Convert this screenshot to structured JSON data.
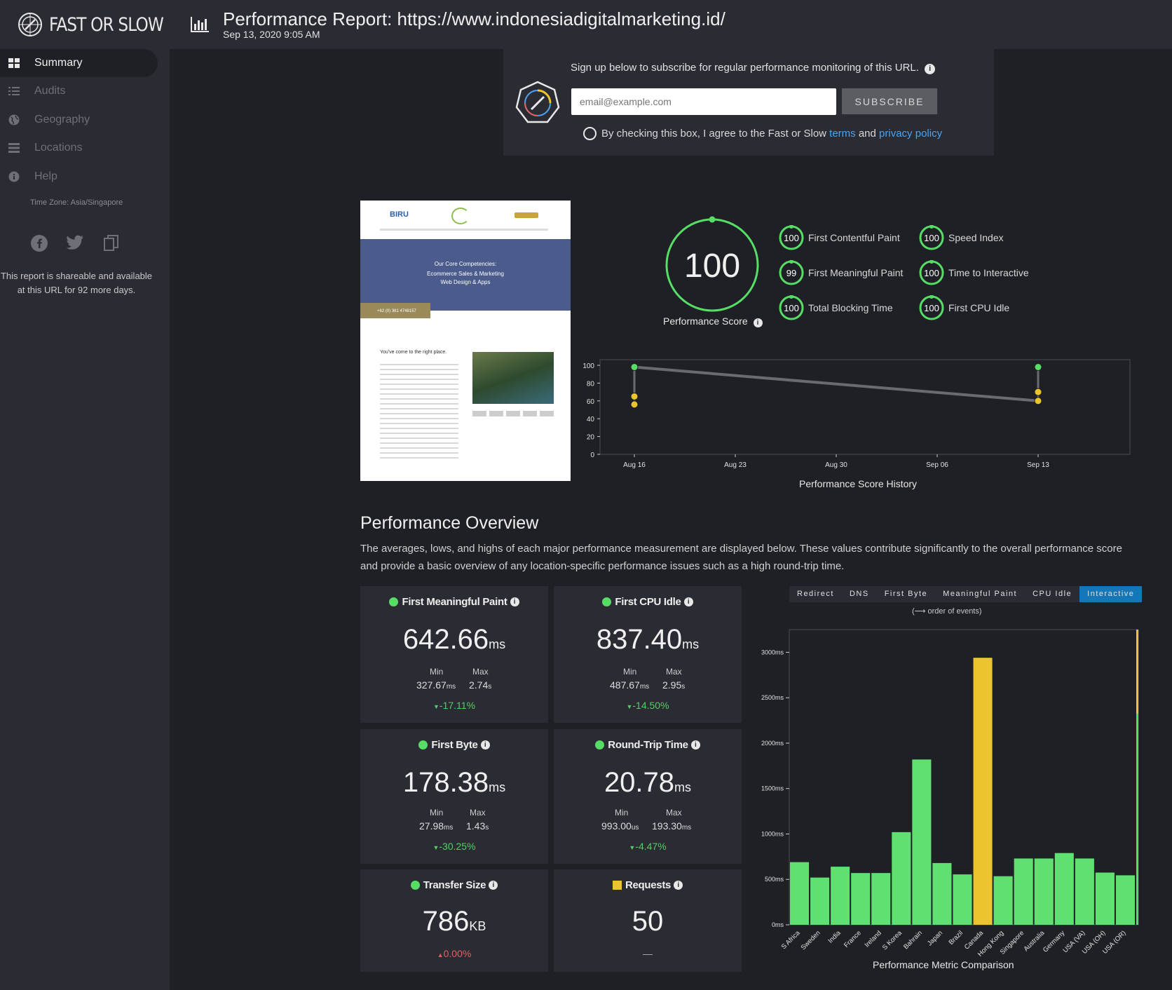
{
  "app": {
    "name": "FAST OR SLOW"
  },
  "report": {
    "title": "Performance Report: https://www.indonesiadigitalmarketing.id/",
    "date": "Sep 13, 2020 9:05 AM"
  },
  "sidebar": {
    "items": [
      {
        "label": "Summary",
        "icon": "grid-icon",
        "active": true
      },
      {
        "label": "Audits",
        "icon": "checklist-icon",
        "active": false
      },
      {
        "label": "Geography",
        "icon": "globe-icon",
        "active": false
      },
      {
        "label": "Locations",
        "icon": "list-icon",
        "active": false
      },
      {
        "label": "Help",
        "icon": "info-icon",
        "active": false
      }
    ],
    "timezone": "Time Zone: Asia/Singapore",
    "share_note": "This report is shareable and available at this URL for 92 more days."
  },
  "subscribe": {
    "text": "Sign up below to subscribe for regular performance monitoring of this URL.",
    "placeholder": "email@example.com",
    "button": "SUBSCRIBE",
    "agree_prefix": "By checking this box, I agree to the Fast or Slow",
    "terms": "terms",
    "and": "and",
    "privacy": "privacy policy"
  },
  "thumbnail": {
    "brand": "BIRU",
    "headline": "Our Core Competencies:",
    "line1": "Ecommerce Sales & Marketing",
    "line2": "Web Design & Apps",
    "phone": "+62 (0) 361 4748157",
    "tagline": "You've come to the right place."
  },
  "score": {
    "value": "100",
    "label": "Performance Score",
    "metrics": [
      {
        "value": "100",
        "label": "First Contentful Paint"
      },
      {
        "value": "99",
        "label": "First Meaningful Paint"
      },
      {
        "value": "100",
        "label": "Total Blocking Time"
      },
      {
        "value": "100",
        "label": "Speed Index"
      },
      {
        "value": "100",
        "label": "Time to Interactive"
      },
      {
        "value": "100",
        "label": "First CPU Idle"
      }
    ]
  },
  "history": {
    "title": "Performance Score History",
    "y_ticks": [
      "100",
      "80",
      "60",
      "40",
      "20",
      "0"
    ],
    "x_ticks": [
      "Aug 16",
      "Aug 23",
      "Aug 30",
      "Sep 06",
      "Sep 13"
    ]
  },
  "overview": {
    "title": "Performance Overview",
    "desc": "The averages, lows, and highs of each major performance measurement are displayed below. These values contribute significantly to the overall performance score and provide a basic overview of any location-specific performance issues such as a high round-trip time."
  },
  "cards": {
    "fmp": {
      "title": "First Meaningful Paint",
      "value": "642.66",
      "unit": "ms",
      "min_label": "Min",
      "max_label": "Max",
      "min": "327.67",
      "min_unit": "ms",
      "max": "2.74",
      "max_unit": "s",
      "delta": "-17.11%"
    },
    "cpu": {
      "title": "First CPU Idle",
      "value": "837.40",
      "unit": "ms",
      "min_label": "Min",
      "max_label": "Max",
      "min": "487.67",
      "min_unit": "ms",
      "max": "2.95",
      "max_unit": "s",
      "delta": "-14.50%"
    },
    "fb": {
      "title": "First Byte",
      "value": "178.38",
      "unit": "ms",
      "min_label": "Min",
      "max_label": "Max",
      "min": "27.98",
      "min_unit": "ms",
      "max": "1.43",
      "max_unit": "s",
      "delta": "-30.25%"
    },
    "rtt": {
      "title": "Round-Trip Time",
      "value": "20.78",
      "unit": "ms",
      "min_label": "Min",
      "max_label": "Max",
      "min": "993.00",
      "min_unit": "us",
      "max": "193.30",
      "max_unit": "ms",
      "delta": "-4.47%"
    },
    "ts": {
      "title": "Transfer Size",
      "value": "786",
      "unit": "KB",
      "delta": "0.00%"
    },
    "req": {
      "title": "Requests",
      "value": "50",
      "delta": "—"
    }
  },
  "comparison": {
    "tabs": [
      "Redirect",
      "DNS",
      "First Byte",
      "Meaningful Paint",
      "CPU Idle",
      "Interactive"
    ],
    "active_tab": "Interactive",
    "order_note": "(⟶ order of events)",
    "title": "Performance Metric Comparison"
  },
  "chart_data": [
    {
      "type": "line",
      "title": "Performance Score History",
      "x": [
        "Aug 16",
        "Aug 23",
        "Aug 30",
        "Sep 06",
        "Sep 13"
      ],
      "ylim": [
        0,
        100
      ],
      "series": [
        {
          "values": [
            {
              "x": "Aug 16",
              "y": 98
            },
            {
              "x": "Sep 13",
              "y": 60
            }
          ]
        }
      ],
      "points": [
        {
          "x": "Aug 16",
          "y": 98,
          "color": "#55dd66"
        },
        {
          "x": "Aug 16",
          "y": 65,
          "color": "#ecc42e"
        },
        {
          "x": "Aug 16",
          "y": 56,
          "color": "#ecc42e"
        },
        {
          "x": "Sep 13",
          "y": 98,
          "color": "#55dd66"
        },
        {
          "x": "Sep 13",
          "y": 70,
          "color": "#ecc42e"
        },
        {
          "x": "Sep 13",
          "y": 60,
          "color": "#ecc42e"
        }
      ]
    },
    {
      "type": "bar",
      "title": "Performance Metric Comparison",
      "categories": [
        "S Africa",
        "Sweden",
        "India",
        "France",
        "Ireland",
        "S Korea",
        "Bahrain",
        "Japan",
        "Brazil",
        "Canada",
        "Hong Kong",
        "Singapore",
        "Australia",
        "Germany",
        "USA (VA)",
        "USA (OH)",
        "USA (OR)"
      ],
      "values": [
        690,
        520,
        640,
        570,
        570,
        1020,
        1820,
        680,
        555,
        2940,
        535,
        730,
        730,
        790,
        730,
        575,
        545
      ],
      "colors": [
        "#5fe070",
        "#5fe070",
        "#5fe070",
        "#5fe070",
        "#5fe070",
        "#5fe070",
        "#5fe070",
        "#5fe070",
        "#5fe070",
        "#ecc42e",
        "#5fe070",
        "#5fe070",
        "#5fe070",
        "#5fe070",
        "#5fe070",
        "#5fe070",
        "#5fe070"
      ],
      "y_ticks": [
        "0ms",
        "500ms",
        "1000ms",
        "1500ms",
        "2000ms",
        "2500ms",
        "3000ms"
      ],
      "ylim": [
        0,
        3250
      ]
    }
  ]
}
